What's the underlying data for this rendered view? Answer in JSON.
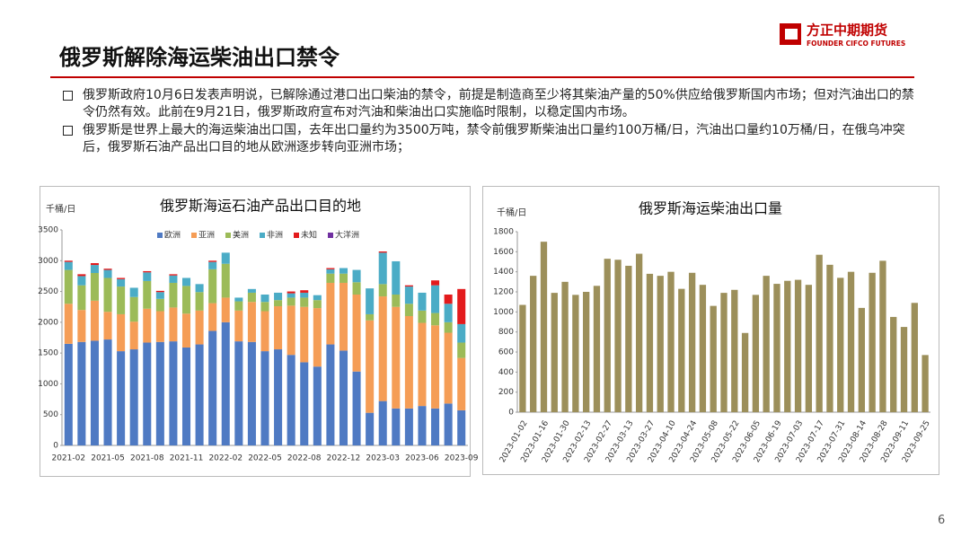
{
  "header": {
    "title": "俄罗斯解除海运柴油出口禁令",
    "logo_name": "方正中期期货",
    "logo_sub": "FOUNDER CIFCO FUTURES"
  },
  "bullets": [
    "俄罗斯政府10月6日发表声明说，已解除通过港口出口柴油的禁令，前提是制造商至少将其柴油产量的50%供应给俄罗斯国内市场；但对汽油出口的禁令仍然有效。此前在9月21日，俄罗斯政府宣布对汽油和柴油出口实施临时限制，以稳定国内市场。",
    "俄罗斯是世界上最大的海运柴油出口国，去年出口量约为3500万吨，禁令前俄罗斯柴油出口量约100万桶/日，汽油出口量约10万桶/日，在俄乌冲突后，俄罗斯石油产品出口目的地从欧洲逐步转向亚洲市场；"
  ],
  "chart_data": [
    {
      "type": "stacked_bar",
      "title": "俄罗斯海运石油产品出口目的地",
      "y_unit": "千桶/日",
      "categories": [
        "2021-02",
        null,
        null,
        "2021-05",
        null,
        null,
        "2021-08",
        null,
        null,
        "2021-11",
        null,
        null,
        "2022-02",
        null,
        null,
        "2022-05",
        null,
        null,
        "2022-08",
        null,
        null,
        "2022-12",
        null,
        null,
        "2023-03",
        null,
        null,
        "2023-06",
        null,
        null,
        "2023-09"
      ],
      "series": [
        {
          "name": "欧洲",
          "color": "#4f7ac3",
          "values": [
            1650,
            1680,
            1700,
            1720,
            1530,
            1560,
            1670,
            1680,
            1690,
            1590,
            1640,
            1860,
            2000,
            1690,
            1680,
            1530,
            1560,
            1470,
            1350,
            1280,
            1640,
            1540,
            1200,
            530,
            720,
            600,
            600,
            640,
            600,
            680,
            570
          ]
        },
        {
          "name": "亚洲",
          "color": "#f59d56",
          "values": [
            650,
            520,
            650,
            450,
            600,
            450,
            550,
            500,
            550,
            550,
            550,
            450,
            400,
            500,
            650,
            650,
            700,
            800,
            900,
            950,
            1000,
            1100,
            1250,
            1500,
            1700,
            1650,
            1500,
            1350,
            1350,
            1150,
            850
          ]
        },
        {
          "name": "美洲",
          "color": "#9cbb58",
          "values": [
            550,
            400,
            450,
            550,
            450,
            400,
            450,
            200,
            400,
            450,
            300,
            550,
            550,
            150,
            150,
            150,
            100,
            130,
            150,
            130,
            150,
            150,
            200,
            100,
            200,
            200,
            200,
            200,
            200,
            170,
            250
          ]
        },
        {
          "name": "非洲",
          "color": "#4bacc6",
          "values": [
            130,
            150,
            130,
            130,
            120,
            150,
            140,
            110,
            120,
            130,
            130,
            120,
            180,
            60,
            60,
            120,
            120,
            70,
            80,
            80,
            70,
            90,
            200,
            420,
            510,
            540,
            280,
            290,
            450,
            300,
            300
          ]
        },
        {
          "name": "未知",
          "color": "#e31a1c",
          "values": [
            20,
            30,
            30,
            20,
            20,
            0,
            20,
            20,
            20,
            0,
            0,
            20,
            0,
            0,
            0,
            0,
            0,
            30,
            40,
            0,
            20,
            0,
            0,
            0,
            20,
            0,
            20,
            0,
            80,
            150,
            570
          ]
        },
        {
          "name": "大洋洲",
          "color": "#7030a0",
          "values": [
            0,
            0,
            0,
            0,
            0,
            0,
            0,
            0,
            0,
            0,
            0,
            0,
            0,
            0,
            0,
            0,
            0,
            0,
            0,
            0,
            0,
            0,
            0,
            0,
            0,
            0,
            0,
            0,
            0,
            0,
            0
          ]
        }
      ],
      "ylim": [
        0,
        3500
      ],
      "yticks": [
        0,
        500,
        1000,
        1500,
        2000,
        2500,
        3000,
        3500
      ]
    },
    {
      "type": "bar",
      "title": "俄罗斯海运柴油出口量",
      "y_unit": "千桶/日",
      "color": "#9c8f5a",
      "categories": [
        "2023-01-02",
        null,
        "2023-01-16",
        null,
        "2023-01-30",
        null,
        "2023-02-13",
        null,
        "2023-02-27",
        null,
        "2023-03-13",
        null,
        "2023-03-27",
        null,
        "2023-04-10",
        null,
        "2023-04-24",
        null,
        "2023-05-08",
        null,
        "2023-05-22",
        null,
        "2023-06-05",
        null,
        "2023-06-19",
        null,
        "2023-07-03",
        null,
        "2023-07-17",
        null,
        "2023-07-31",
        null,
        "2023-08-14",
        null,
        "2023-08-28",
        null,
        "2023-09-11",
        null,
        "2023-09-25"
      ],
      "values": [
        1070,
        1360,
        1700,
        1190,
        1300,
        1170,
        1200,
        1260,
        1530,
        1520,
        1460,
        1580,
        1380,
        1360,
        1400,
        1230,
        1390,
        1270,
        1060,
        1190,
        1220,
        790,
        1170,
        1360,
        1280,
        1310,
        1320,
        1270,
        1570,
        1470,
        1340,
        1400,
        1040,
        1390,
        1510,
        950,
        850,
        1090,
        570
      ],
      "ylim": [
        0,
        1800
      ],
      "yticks": [
        0,
        200,
        400,
        600,
        800,
        1000,
        1200,
        1400,
        1600,
        1800
      ]
    }
  ],
  "page_number": "6"
}
